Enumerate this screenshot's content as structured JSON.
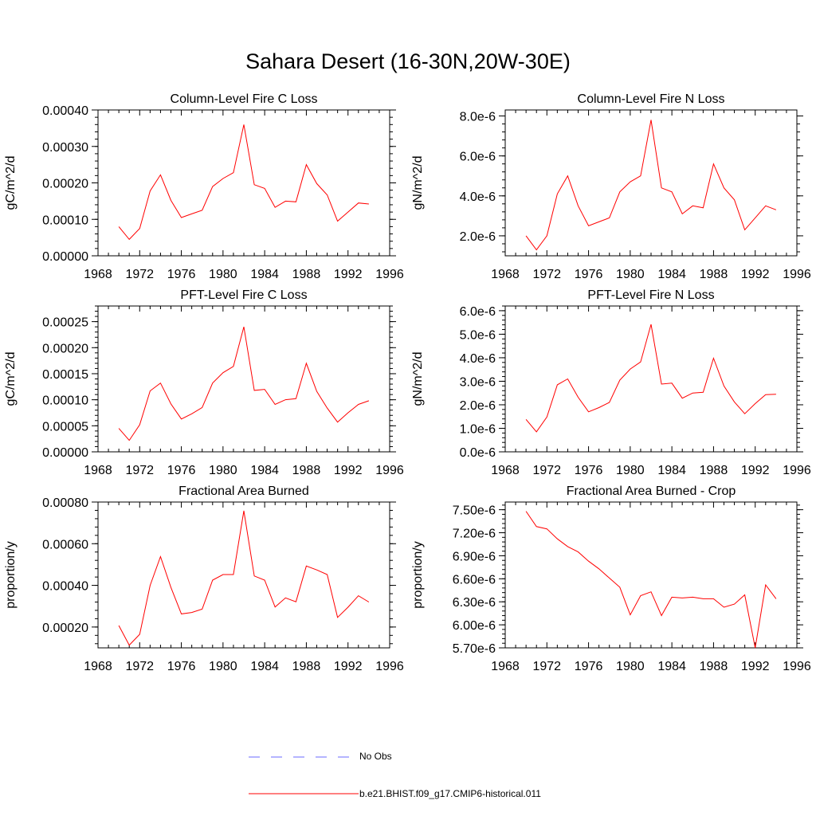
{
  "figure": {
    "title": "Sahara Desert (16-30N,20W-30E)"
  },
  "legend": {
    "items": [
      {
        "label": "No Obs",
        "color": "#6a6aff",
        "style": "dashed"
      },
      {
        "label": "b.e21.BHIST.f09_g17.CMIP6-historical.011",
        "color": "#ff0000",
        "style": "solid"
      }
    ]
  },
  "chart_data": [
    {
      "type": "line",
      "title": "Column-Level Fire C Loss",
      "ylabel": "gC/m^2/d",
      "xlim": [
        1968,
        1996
      ],
      "ylim": [
        0.0,
        0.0004
      ],
      "x_ticks": [
        "1968",
        "1972",
        "1976",
        "1980",
        "1984",
        "1988",
        "1992",
        "1996"
      ],
      "y_ticks": [
        {
          "value": 0.0,
          "label": "0.00000"
        },
        {
          "value": 0.0001,
          "label": "0.00010"
        },
        {
          "value": 0.0002,
          "label": "0.00020"
        },
        {
          "value": 0.0003,
          "label": "0.00030"
        },
        {
          "value": 0.0004,
          "label": "0.00040"
        }
      ],
      "series": [
        {
          "name": "b.e21.BHIST.f09_g17.CMIP6-historical.011",
          "color": "#ff0000",
          "x": [
            1970,
            1971,
            1972,
            1973,
            1974,
            1975,
            1976,
            1977,
            1978,
            1979,
            1980,
            1981,
            1982,
            1983,
            1984,
            1985,
            1986,
            1987,
            1988,
            1989,
            1990,
            1991,
            1992,
            1993,
            1994
          ],
          "y": [
            8e-05,
            4.5e-05,
            7.5e-05,
            0.000178,
            0.000222,
            0.000152,
            0.000105,
            0.000115,
            0.000125,
            0.00019,
            0.000212,
            0.000228,
            0.00036,
            0.000195,
            0.000185,
            0.000133,
            0.00015,
            0.000148,
            0.00025,
            0.000198,
            0.000167,
            9.5e-05,
            0.00012,
            0.000145,
            0.000142
          ]
        }
      ]
    },
    {
      "type": "line",
      "title": "Column-Level Fire N Loss",
      "ylabel": "gN/m^2/d",
      "xlim": [
        1968,
        1996
      ],
      "ylim": [
        1e-06,
        8.3e-06
      ],
      "x_ticks": [
        "1968",
        "1972",
        "1976",
        "1980",
        "1984",
        "1988",
        "1992",
        "1996"
      ],
      "y_ticks": [
        {
          "value": 2e-06,
          "label": "2.0e-6"
        },
        {
          "value": 4e-06,
          "label": "4.0e-6"
        },
        {
          "value": 6e-06,
          "label": "6.0e-6"
        },
        {
          "value": 8e-06,
          "label": "8.0e-6"
        }
      ],
      "series": [
        {
          "name": "b.e21.BHIST.f09_g17.CMIP6-historical.011",
          "color": "#ff0000",
          "x": [
            1970,
            1971,
            1972,
            1973,
            1974,
            1975,
            1976,
            1977,
            1978,
            1979,
            1980,
            1981,
            1982,
            1983,
            1984,
            1985,
            1986,
            1987,
            1988,
            1989,
            1990,
            1991,
            1992,
            1993,
            1994
          ],
          "y": [
            2e-06,
            1.3e-06,
            2e-06,
            4.1e-06,
            5e-06,
            3.5e-06,
            2.5e-06,
            2.7e-06,
            2.9e-06,
            4.2e-06,
            4.7e-06,
            5e-06,
            7.8e-06,
            4.4e-06,
            4.2e-06,
            3.1e-06,
            3.5e-06,
            3.4e-06,
            5.6e-06,
            4.4e-06,
            3.8e-06,
            2.3e-06,
            2.9e-06,
            3.5e-06,
            3.3e-06
          ]
        }
      ]
    },
    {
      "type": "line",
      "title": "PFT-Level Fire C Loss",
      "ylabel": "gC/m^2/d",
      "xlim": [
        1968,
        1996
      ],
      "ylim": [
        0.0,
        0.00028
      ],
      "x_ticks": [
        "1968",
        "1972",
        "1976",
        "1980",
        "1984",
        "1988",
        "1992",
        "1996"
      ],
      "y_ticks": [
        {
          "value": 0.0,
          "label": "0.00000"
        },
        {
          "value": 5e-05,
          "label": "0.00005"
        },
        {
          "value": 0.0001,
          "label": "0.00010"
        },
        {
          "value": 0.00015,
          "label": "0.00015"
        },
        {
          "value": 0.0002,
          "label": "0.00020"
        },
        {
          "value": 0.00025,
          "label": "0.00025"
        }
      ],
      "series": [
        {
          "name": "b.e21.BHIST.f09_g17.CMIP6-historical.011",
          "color": "#ff0000",
          "x": [
            1970,
            1971,
            1972,
            1973,
            1974,
            1975,
            1976,
            1977,
            1978,
            1979,
            1980,
            1981,
            1982,
            1983,
            1984,
            1985,
            1986,
            1987,
            1988,
            1989,
            1990,
            1991,
            1992,
            1993,
            1994
          ],
          "y": [
            4.5e-05,
            2.2e-05,
            5.2e-05,
            0.000117,
            0.000132,
            9.2e-05,
            6.3e-05,
            7.3e-05,
            8.5e-05,
            0.000132,
            0.000152,
            0.000164,
            0.00024,
            0.000118,
            0.00012,
            9.1e-05,
            0.0001,
            0.000102,
            0.00017,
            0.000116,
            8.4e-05,
            5.7e-05,
            7.5e-05,
            9.1e-05,
            9.8e-05
          ]
        }
      ]
    },
    {
      "type": "line",
      "title": "PFT-Level Fire N Loss",
      "ylabel": "gN/m^2/d",
      "xlim": [
        1968,
        1996
      ],
      "ylim": [
        0.0,
        6.2e-06
      ],
      "x_ticks": [
        "1968",
        "1972",
        "1976",
        "1980",
        "1984",
        "1988",
        "1992",
        "1996"
      ],
      "y_ticks": [
        {
          "value": 0.0,
          "label": "0.0e-6"
        },
        {
          "value": 1e-06,
          "label": "1.0e-6"
        },
        {
          "value": 2e-06,
          "label": "2.0e-6"
        },
        {
          "value": 3e-06,
          "label": "3.0e-6"
        },
        {
          "value": 4e-06,
          "label": "4.0e-6"
        },
        {
          "value": 5e-06,
          "label": "5.0e-6"
        },
        {
          "value": 6e-06,
          "label": "6.0e-6"
        }
      ],
      "series": [
        {
          "name": "b.e21.BHIST.f09_g17.CMIP6-historical.011",
          "color": "#ff0000",
          "x": [
            1970,
            1971,
            1972,
            1973,
            1974,
            1975,
            1976,
            1977,
            1978,
            1979,
            1980,
            1981,
            1982,
            1983,
            1984,
            1985,
            1986,
            1987,
            1988,
            1989,
            1990,
            1991,
            1992,
            1993,
            1994
          ],
          "y": [
            1.38e-06,
            8.5e-07,
            1.48e-06,
            2.85e-06,
            3.1e-06,
            2.32e-06,
            1.7e-06,
            1.88e-06,
            2.1e-06,
            3.05e-06,
            3.52e-06,
            3.82e-06,
            5.42e-06,
            2.88e-06,
            2.92e-06,
            2.28e-06,
            2.5e-06,
            2.53e-06,
            3.98e-06,
            2.8e-06,
            2.12e-06,
            1.62e-06,
            2.05e-06,
            2.43e-06,
            2.45e-06
          ]
        }
      ]
    },
    {
      "type": "line",
      "title": "Fractional Area Burned",
      "ylabel": "proportion/y",
      "xlim": [
        1968,
        1996
      ],
      "ylim": [
        0.0001,
        0.0008
      ],
      "x_ticks": [
        "1968",
        "1972",
        "1976",
        "1980",
        "1984",
        "1988",
        "1992",
        "1996"
      ],
      "y_ticks": [
        {
          "value": 0.0002,
          "label": "0.00020"
        },
        {
          "value": 0.0004,
          "label": "0.00040"
        },
        {
          "value": 0.0006,
          "label": "0.00060"
        },
        {
          "value": 0.0008,
          "label": "0.00080"
        }
      ],
      "series": [
        {
          "name": "b.e21.BHIST.f09_g17.CMIP6-historical.011",
          "color": "#ff0000",
          "x": [
            1970,
            1971,
            1972,
            1973,
            1974,
            1975,
            1976,
            1977,
            1978,
            1979,
            1980,
            1981,
            1982,
            1983,
            1984,
            1985,
            1986,
            1987,
            1988,
            1989,
            1990,
            1991,
            1992,
            1993,
            1994
          ],
          "y": [
            0.000207,
            0.000113,
            0.000165,
            0.0004,
            0.000538,
            0.00039,
            0.000263,
            0.00027,
            0.000286,
            0.000425,
            0.000452,
            0.000452,
            0.000758,
            0.000445,
            0.000425,
            0.000296,
            0.00034,
            0.000321,
            0.000493,
            0.000474,
            0.000452,
            0.000246,
            0.000295,
            0.00035,
            0.00032
          ]
        }
      ]
    },
    {
      "type": "line",
      "title": "Fractional Area Burned - Crop",
      "ylabel": "proportion/y",
      "xlim": [
        1968,
        1996
      ],
      "ylim": [
        5.7e-06,
        7.6e-06
      ],
      "x_ticks": [
        "1968",
        "1972",
        "1976",
        "1980",
        "1984",
        "1988",
        "1992",
        "1996"
      ],
      "y_ticks": [
        {
          "value": 5.7e-06,
          "label": "5.70e-6"
        },
        {
          "value": 6e-06,
          "label": "6.00e-6"
        },
        {
          "value": 6.3e-06,
          "label": "6.30e-6"
        },
        {
          "value": 6.6e-06,
          "label": "6.60e-6"
        },
        {
          "value": 6.9e-06,
          "label": "6.90e-6"
        },
        {
          "value": 7.2e-06,
          "label": "7.20e-6"
        },
        {
          "value": 7.5e-06,
          "label": "7.50e-6"
        }
      ],
      "series": [
        {
          "name": "b.e21.BHIST.f09_g17.CMIP6-historical.011",
          "color": "#ff0000",
          "x": [
            1970,
            1971,
            1972,
            1973,
            1974,
            1975,
            1976,
            1977,
            1978,
            1979,
            1980,
            1981,
            1982,
            1983,
            1984,
            1985,
            1986,
            1987,
            1988,
            1989,
            1990,
            1991,
            1992,
            1993,
            1994
          ],
          "y": [
            7.48e-06,
            7.28e-06,
            7.25e-06,
            7.12e-06,
            7.02e-06,
            6.95e-06,
            6.83e-06,
            6.73e-06,
            6.61e-06,
            6.49e-06,
            6.13e-06,
            6.38e-06,
            6.43e-06,
            6.12e-06,
            6.36e-06,
            6.35e-06,
            6.36e-06,
            6.34e-06,
            6.34e-06,
            6.23e-06,
            6.27e-06,
            6.39e-06,
            5.7e-06,
            6.52e-06,
            6.34e-06
          ]
        }
      ]
    }
  ]
}
